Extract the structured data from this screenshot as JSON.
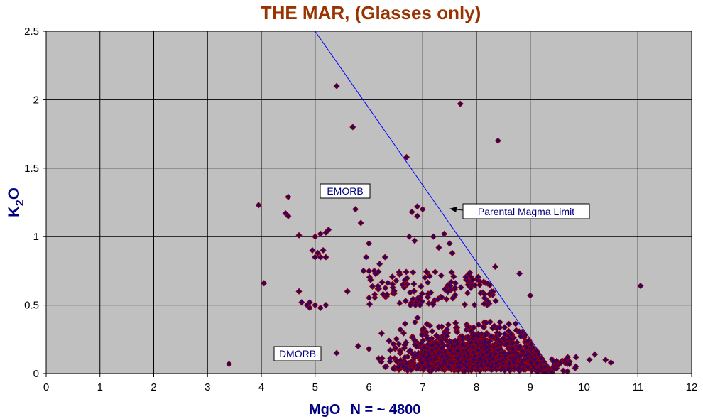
{
  "chart_data": {
    "type": "scatter",
    "title": "THE MAR, (Glasses only)",
    "xlabel": "MgO",
    "xlabel_note": "N = ~ 4800",
    "ylabel": "K2O",
    "xlim": [
      0,
      12
    ],
    "ylim": [
      0,
      2.5
    ],
    "xticks": [
      "0",
      "1",
      "2",
      "3",
      "4",
      "5",
      "6",
      "7",
      "8",
      "9",
      "10",
      "11",
      "12"
    ],
    "yticks": [
      "0",
      "0.5",
      "1",
      "1.5",
      "2",
      "2.5"
    ],
    "grid": true,
    "colors": {
      "plot_bg": "#c0c0c0",
      "marker_fill": "#330066",
      "marker_edge": "#990000",
      "line": "#0000ff",
      "title": "#993300",
      "axis_label": "#000080"
    },
    "series": [
      {
        "marker": "diamond",
        "points": [
          [
            3.4,
            0.07
          ],
          [
            3.95,
            1.23
          ],
          [
            4.05,
            0.66
          ],
          [
            4.45,
            1.17
          ],
          [
            4.5,
            1.29
          ],
          [
            4.5,
            1.15
          ],
          [
            4.7,
            1.01
          ],
          [
            4.7,
            0.6
          ],
          [
            4.75,
            0.52
          ],
          [
            4.85,
            0.5
          ],
          [
            4.9,
            0.48
          ],
          [
            4.9,
            0.52
          ],
          [
            5.0,
            1.0
          ],
          [
            5.05,
            0.88
          ],
          [
            5.1,
            1.02
          ],
          [
            5.15,
            0.9
          ],
          [
            5.2,
            1.03
          ],
          [
            5.25,
            1.05
          ],
          [
            5.0,
            0.85
          ],
          [
            5.1,
            0.85
          ],
          [
            5.2,
            0.85
          ],
          [
            4.95,
            0.9
          ],
          [
            5.0,
            0.5
          ],
          [
            5.1,
            0.48
          ],
          [
            5.2,
            0.5
          ],
          [
            5.4,
            2.1
          ],
          [
            5.4,
            0.15
          ],
          [
            5.7,
            1.8
          ],
          [
            5.75,
            1.2
          ],
          [
            5.85,
            1.1
          ],
          [
            5.6,
            0.6
          ],
          [
            5.9,
            0.75
          ],
          [
            5.95,
            0.85
          ],
          [
            6.0,
            0.95
          ],
          [
            6.1,
            0.75
          ],
          [
            6.2,
            0.8
          ],
          [
            6.3,
            0.85
          ],
          [
            5.8,
            0.2
          ],
          [
            6.0,
            0.18
          ],
          [
            6.7,
            1.58
          ],
          [
            6.8,
            1.18
          ],
          [
            6.9,
            1.22
          ],
          [
            7.0,
            1.2
          ],
          [
            6.9,
            1.15
          ],
          [
            6.75,
            1.0
          ],
          [
            6.85,
            0.97
          ],
          [
            7.2,
            1.0
          ],
          [
            7.3,
            0.92
          ],
          [
            7.4,
            1.02
          ],
          [
            7.5,
            0.95
          ],
          [
            7.55,
            0.88
          ],
          [
            7.7,
            1.97
          ],
          [
            8.4,
            1.7
          ],
          [
            8.35,
            0.78
          ],
          [
            8.8,
            0.73
          ],
          [
            9.0,
            0.57
          ],
          [
            11.05,
            0.64
          ],
          [
            10.1,
            0.1
          ],
          [
            10.2,
            0.14
          ],
          [
            10.4,
            0.1
          ],
          [
            10.5,
            0.08
          ],
          [
            9.85,
            0.12
          ]
        ],
        "dense_cluster": {
          "x_range": [
            6.0,
            10.0
          ],
          "y_range": [
            0.0,
            0.75
          ],
          "note": "several thousand overlapping points (N = ~ 4800)"
        }
      }
    ],
    "reference_line": {
      "name": "Parental Magma Limit",
      "from": [
        5.0,
        2.5
      ],
      "to": [
        9.45,
        0.0
      ]
    },
    "annotations": [
      {
        "text": "EMORB"
      },
      {
        "text": "DMORB"
      },
      {
        "text": "Parental Magma Limit"
      }
    ]
  }
}
